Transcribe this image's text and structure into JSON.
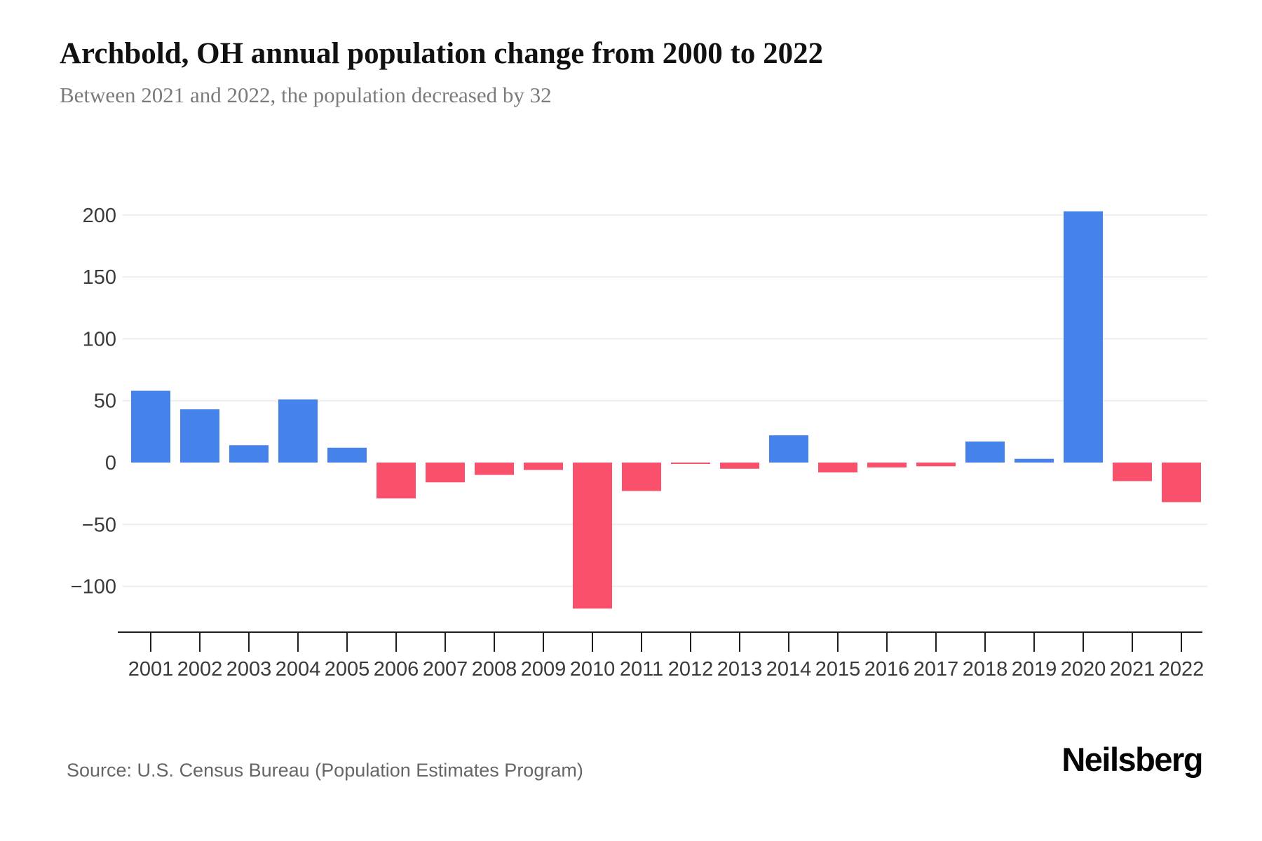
{
  "header": {
    "title": "Archbold, OH annual population change from 2000 to 2022",
    "subtitle": "Between 2021 and 2022, the population decreased by 32"
  },
  "footer": {
    "source": "Source: U.S. Census Bureau (Population Estimates Program)",
    "brand": "Neilsberg"
  },
  "chart_data": {
    "type": "bar",
    "title": "Archbold, OH annual population change from 2000 to 2022",
    "xlabel": "",
    "ylabel": "",
    "categories": [
      "2001",
      "2002",
      "2003",
      "2004",
      "2005",
      "2006",
      "2007",
      "2008",
      "2009",
      "2010",
      "2011",
      "2012",
      "2013",
      "2014",
      "2015",
      "2016",
      "2017",
      "2018",
      "2019",
      "2020",
      "2021",
      "2022"
    ],
    "values": [
      58,
      43,
      14,
      51,
      12,
      -29,
      -16,
      -10,
      -6,
      -118,
      -23,
      -1,
      -5,
      22,
      -8,
      -4,
      -3,
      17,
      3,
      203,
      -15,
      -32
    ],
    "yticks": [
      200,
      150,
      100,
      50,
      0,
      -50,
      -100
    ],
    "ylim": [
      -137,
      243
    ],
    "grid": "horizontal",
    "legend": "none",
    "colors": {
      "positive": "#4583EA",
      "negative": "#F9516C",
      "gridline": "#ededed",
      "axis": "#1f1f1f",
      "tick_label": "#3b3b3b"
    }
  }
}
